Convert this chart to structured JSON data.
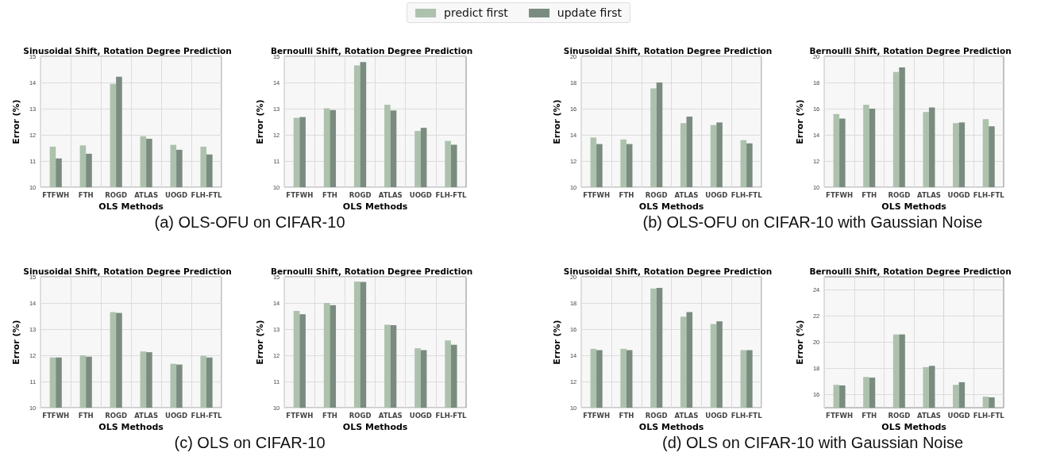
{
  "chart_data": [
    {
      "type": "bar",
      "title": "Sinusoidal Shift, Rotation Degree Prediction",
      "xlabel": "OLS Methods",
      "ylabel": "Error (%)",
      "categories": [
        "FTFWH",
        "FTH",
        "ROGD",
        "ATLAS",
        "UOGD",
        "FLH-FTL"
      ],
      "ylim": [
        10,
        15
      ],
      "yticks": [
        10,
        11,
        12,
        13,
        14,
        15
      ],
      "grid": true,
      "legend": "top",
      "annotations": [
        "(a) OLS-OFU on CIFAR-10"
      ],
      "series": [
        {
          "name": "predict first",
          "color": "#adc2ad",
          "values": [
            11.55,
            11.6,
            13.95,
            11.95,
            11.62,
            11.55
          ]
        },
        {
          "name": "update first",
          "color": "#7a8c80",
          "values": [
            11.1,
            11.28,
            14.22,
            11.85,
            11.43,
            11.25
          ]
        }
      ]
    },
    {
      "type": "bar",
      "title": "Bernoulli Shift, Rotation Degree Prediction",
      "xlabel": "OLS Methods",
      "ylabel": "Error (%)",
      "categories": [
        "FTFWH",
        "FTH",
        "ROGD",
        "ATLAS",
        "UOGD",
        "FLH-FTL"
      ],
      "ylim": [
        10,
        15
      ],
      "yticks": [
        10,
        11,
        12,
        13,
        14,
        15
      ],
      "grid": true,
      "series": [
        {
          "color": "#adc2ad",
          "values": [
            12.65,
            13.02,
            14.65,
            13.15,
            12.15,
            11.77
          ]
        },
        {
          "color": "#7a8c80",
          "values": [
            12.68,
            12.95,
            14.78,
            12.93,
            12.27,
            11.62
          ]
        }
      ]
    },
    {
      "type": "bar",
      "title": "Sinusoidal Shift, Rotation Degree Prediction",
      "xlabel": "OLS Methods",
      "ylabel": "Error (%)",
      "categories": [
        "FTFWH",
        "FTH",
        "ROGD",
        "ATLAS",
        "UOGD",
        "FLH-FTL"
      ],
      "ylim": [
        10,
        20
      ],
      "yticks": [
        10,
        12,
        14,
        16,
        18,
        20
      ],
      "grid": true,
      "annotations": [
        "(b) OLS-OFU on CIFAR-10 with Gaussian Noise"
      ],
      "series": [
        {
          "color": "#adc2ad",
          "values": [
            13.8,
            13.65,
            17.55,
            14.9,
            14.75,
            13.6
          ]
        },
        {
          "color": "#7a8c80",
          "values": [
            13.3,
            13.3,
            18.0,
            15.4,
            14.95,
            13.35
          ]
        }
      ]
    },
    {
      "type": "bar",
      "title": "Bernoulli Shift, Rotation Degree Prediction",
      "xlabel": "OLS Methods",
      "ylabel": "Error (%)",
      "categories": [
        "FTFWH",
        "FTH",
        "ROGD",
        "ATLAS",
        "UOGD",
        "FLH-FTL"
      ],
      "ylim": [
        10,
        20
      ],
      "yticks": [
        10,
        12,
        14,
        16,
        18,
        20
      ],
      "grid": true,
      "series": [
        {
          "color": "#adc2ad",
          "values": [
            15.6,
            16.3,
            18.8,
            15.75,
            14.9,
            15.2
          ]
        },
        {
          "color": "#7a8c80",
          "values": [
            15.25,
            16.0,
            19.15,
            16.1,
            14.95,
            14.65
          ]
        }
      ]
    },
    {
      "type": "bar",
      "title": "Sinusoidal Shift, Rotation Degree Prediction",
      "xlabel": "OLS Methods",
      "ylabel": "Error (%)",
      "categories": [
        "FTFWH",
        "FTH",
        "ROGD",
        "ATLAS",
        "UOGD",
        "FLH-FTL"
      ],
      "ylim": [
        10,
        15
      ],
      "yticks": [
        10,
        11,
        12,
        13,
        14,
        15
      ],
      "grid": true,
      "annotations": [
        "(c) OLS on CIFAR-10"
      ],
      "series": [
        {
          "color": "#adc2ad",
          "values": [
            11.92,
            12.0,
            13.65,
            12.15,
            11.68,
            11.98
          ]
        },
        {
          "color": "#7a8c80",
          "values": [
            11.92,
            11.95,
            13.62,
            12.12,
            11.65,
            11.92
          ]
        }
      ]
    },
    {
      "type": "bar",
      "title": "Bernoulli Shift, Rotation Degree Prediction",
      "xlabel": "OLS Methods",
      "ylabel": "Error (%)",
      "categories": [
        "FTFWH",
        "FTH",
        "ROGD",
        "ATLAS",
        "UOGD",
        "FLH-FTL"
      ],
      "ylim": [
        10,
        15
      ],
      "yticks": [
        10,
        11,
        12,
        13,
        14,
        15
      ],
      "grid": true,
      "series": [
        {
          "color": "#adc2ad",
          "values": [
            13.7,
            14.0,
            14.82,
            13.17,
            12.27,
            12.57
          ]
        },
        {
          "color": "#7a8c80",
          "values": [
            13.57,
            13.92,
            14.8,
            13.15,
            12.2,
            12.4
          ]
        }
      ]
    },
    {
      "type": "bar",
      "title": "Sinusoidal Shift, Rotation Degree Prediction",
      "xlabel": "OLS Methods",
      "ylabel": "Error (%)",
      "categories": [
        "FTFWH",
        "FTH",
        "ROGD",
        "ATLAS",
        "UOGD",
        "FLH-FTL"
      ],
      "ylim": [
        10,
        20
      ],
      "yticks": [
        10,
        12,
        14,
        16,
        18,
        20
      ],
      "grid": true,
      "annotations": [
        "(d) OLS on CIFAR-10 with Gaussian Noise"
      ],
      "series": [
        {
          "color": "#adc2ad",
          "values": [
            14.5,
            14.5,
            19.1,
            16.95,
            16.4,
            14.4
          ]
        },
        {
          "color": "#7a8c80",
          "values": [
            14.4,
            14.4,
            19.15,
            17.3,
            16.6,
            14.4
          ]
        }
      ]
    },
    {
      "type": "bar",
      "title": "Bernoulli Shift, Rotation Degree Prediction",
      "xlabel": "OLS Methods",
      "ylabel": "Error (%)",
      "categories": [
        "FTFWH",
        "FTH",
        "ROGD",
        "ATLAS",
        "UOGD",
        "FLH-FTL"
      ],
      "ylim": [
        15,
        25
      ],
      "yticks": [
        16,
        18,
        20,
        22,
        24
      ],
      "grid": true,
      "series": [
        {
          "color": "#adc2ad",
          "values": [
            16.75,
            17.35,
            20.6,
            18.1,
            16.75,
            15.85
          ]
        },
        {
          "color": "#7a8c80",
          "values": [
            16.7,
            17.3,
            20.6,
            18.2,
            16.95,
            15.8
          ]
        }
      ]
    }
  ]
}
